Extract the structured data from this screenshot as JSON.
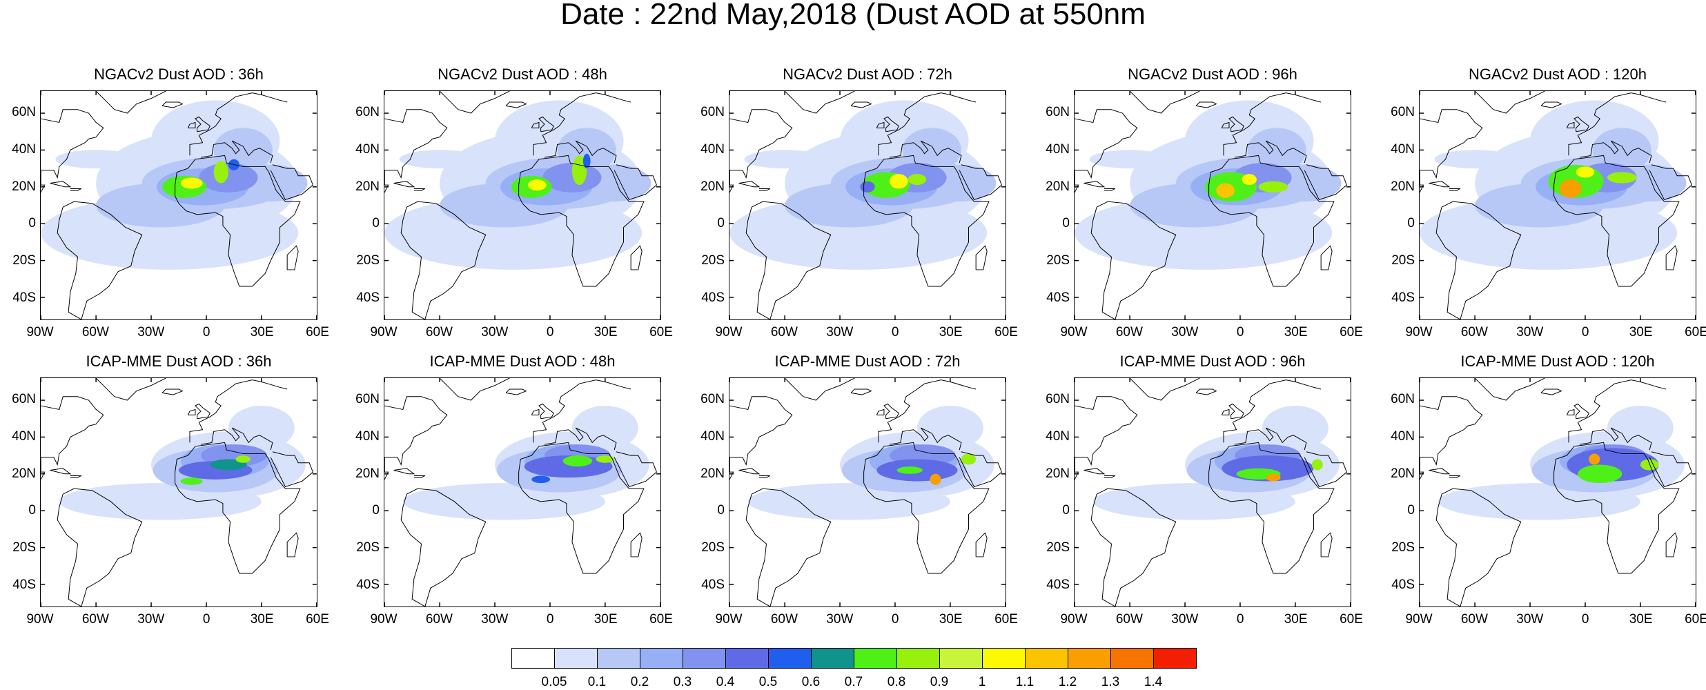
{
  "figure": {
    "title": "Date : 22nd May,2018 (Dust AOD at 550nm"
  },
  "axes": {
    "lat_ticks": [
      "60N",
      "40N",
      "20N",
      "0",
      "20S",
      "40S"
    ],
    "lon_ticks": [
      "90W",
      "60W",
      "30W",
      "0",
      "30E",
      "60E"
    ]
  },
  "panels": [
    {
      "title": "NGACv2 Dust AOD : 36h",
      "model": "NGACv2",
      "lead": "36h"
    },
    {
      "title": "NGACv2 Dust AOD : 48h",
      "model": "NGACv2",
      "lead": "48h"
    },
    {
      "title": "NGACv2 Dust AOD : 72h",
      "model": "NGACv2",
      "lead": "72h"
    },
    {
      "title": "NGACv2 Dust AOD : 96h",
      "model": "NGACv2",
      "lead": "96h"
    },
    {
      "title": "NGACv2 Dust AOD : 120h",
      "model": "NGACv2",
      "lead": "120h"
    },
    {
      "title": "ICAP-MME Dust AOD : 36h",
      "model": "ICAP-MME",
      "lead": "36h"
    },
    {
      "title": "ICAP-MME Dust AOD : 48h",
      "model": "ICAP-MME",
      "lead": "48h"
    },
    {
      "title": "ICAP-MME Dust AOD : 72h",
      "model": "ICAP-MME",
      "lead": "72h"
    },
    {
      "title": "ICAP-MME Dust AOD : 96h",
      "model": "ICAP-MME",
      "lead": "96h"
    },
    {
      "title": "ICAP-MME Dust AOD : 120h",
      "model": "ICAP-MME",
      "lead": "120h"
    }
  ],
  "colorbar": {
    "labels": [
      "0.05",
      "0.1",
      "0.2",
      "0.3",
      "0.4",
      "0.5",
      "0.6",
      "0.7",
      "0.8",
      "0.9",
      "1",
      "1.1",
      "1.2",
      "1.3",
      "1.4"
    ],
    "colors": [
      "#ffffff",
      "#d8e2fb",
      "#b7c8f7",
      "#97aff4",
      "#8193ef",
      "#5f6be6",
      "#1f5ff0",
      "#11938d",
      "#4ff018",
      "#97f10c",
      "#c9f43c",
      "#fbfa00",
      "#fac400",
      "#f9a000",
      "#f77400",
      "#f41f00"
    ]
  }
}
